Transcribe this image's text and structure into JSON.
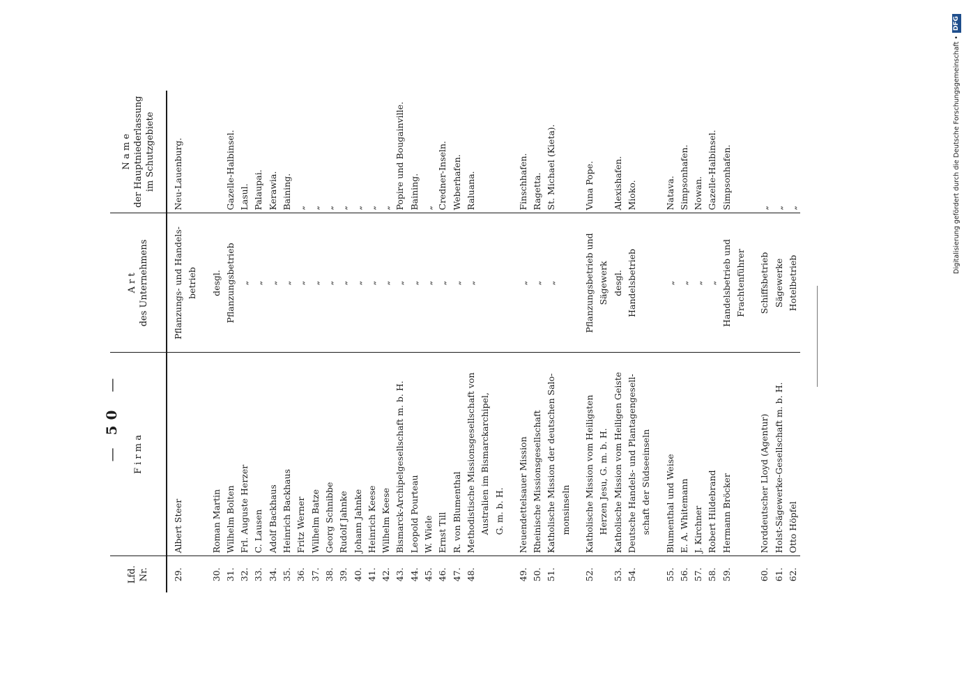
{
  "page_number": "50",
  "dash": "—",
  "table": {
    "headers": {
      "nr_line1": "Lfd.",
      "nr_line2": "Nr.",
      "firma": "F i r m a",
      "art_line1": "A r t",
      "art_line2": "des Unternehmens",
      "ort_line1": "N a m e",
      "ort_line2": "der Hauptniederlassung",
      "ort_line3": "im Schutzgebiete"
    },
    "rows": [
      {
        "nr": "29.",
        "firma": "Albert Steer",
        "art": "Pflanzungs- und Handels-",
        "ort": "Neu-Lauenburg."
      },
      {
        "nr": "",
        "firma": "",
        "art": "betrieb",
        "ort": ""
      },
      {
        "nr": "30.",
        "firma": "Roman Martin",
        "art": "desgl.",
        "ort": ""
      },
      {
        "nr": "31.",
        "firma": "Wilhelm Bolten",
        "art": "Pflanzungsbetrieb",
        "ort": "Gazelle-Halbinsel."
      },
      {
        "nr": "32.",
        "firma": "Frl. Auguste Herzer",
        "art": "„",
        "ort": "Lasul."
      },
      {
        "nr": "33.",
        "firma": "C. Lausen",
        "art": "„",
        "ort": "Palaupai."
      },
      {
        "nr": "34.",
        "firma": "Adolf Backhaus",
        "art": "„",
        "ort": "Kerawia."
      },
      {
        "nr": "35.",
        "firma": "Heinrich Backhaus",
        "art": "„",
        "ort": "Baining."
      },
      {
        "nr": "36.",
        "firma": "Fritz Werner",
        "art": "„",
        "ort": "„"
      },
      {
        "nr": "37.",
        "firma": "Wilhelm Batze",
        "art": "„",
        "ort": "„"
      },
      {
        "nr": "38.",
        "firma": "Georg Schnibbe",
        "art": "„",
        "ort": "„"
      },
      {
        "nr": "39.",
        "firma": "Rudolf Jahnke",
        "art": "„",
        "ort": "„"
      },
      {
        "nr": "40.",
        "firma": "Johann Jahnke",
        "art": "„",
        "ort": "„"
      },
      {
        "nr": "41.",
        "firma": "Heinrich Keese",
        "art": "„",
        "ort": "„"
      },
      {
        "nr": "42.",
        "firma": "Wilhelm Keese",
        "art": "„",
        "ort": "„"
      },
      {
        "nr": "43.",
        "firma": "Bismarck-Archipelgesellschaft m. b. H.",
        "art": "„",
        "ort": "Popire und Bougainville."
      },
      {
        "nr": "44.",
        "firma": "Leopold Pourteau",
        "art": "„",
        "ort": "Baining."
      },
      {
        "nr": "45.",
        "firma": "W. Wiele",
        "art": "„",
        "ort": "„"
      },
      {
        "nr": "46.",
        "firma": "Ernst Till",
        "art": "„",
        "ort": "Credner-Inseln."
      },
      {
        "nr": "47.",
        "firma": "R. von Blumenthal",
        "art": "„",
        "ort": "Weberhafen."
      },
      {
        "nr": "48.",
        "firma": "Methodistische Missionsgesellschaft von",
        "art": "„",
        "ort": "Raluana."
      },
      {
        "nr": "",
        "firma": "Australien im Bismarckarchipel,",
        "art": "",
        "ort": ""
      },
      {
        "nr": "",
        "firma": "G. m. b. H.",
        "art": "",
        "ort": ""
      },
      {
        "nr": "49.",
        "firma": "Neuendettelsauer Mission",
        "art": "„",
        "ort": "Finschhafen."
      },
      {
        "nr": "50.",
        "firma": "Rheinische Missionsgesellschaft",
        "art": "„",
        "ort": "Ragetta."
      },
      {
        "nr": "51.",
        "firma": "Katholische Mission der deutschen Salo-",
        "art": "„",
        "ort": "St. Michael (Kieta)."
      },
      {
        "nr": "",
        "firma": "monsinseln",
        "art": "",
        "ort": ""
      },
      {
        "nr": "52.",
        "firma": "Katholische Mission vom Heiligsten",
        "art": "Pflanzungsbetrieb und",
        "ort": "Vuna Pope."
      },
      {
        "nr": "",
        "firma": "Herzen Jesu, G. m. b. H.",
        "art": "Sägewerk",
        "ort": ""
      },
      {
        "nr": "53.",
        "firma": "Katholische Mission vom Heiligen Geiste",
        "art": "desgl.",
        "ort": "Alexishafen."
      },
      {
        "nr": "54.",
        "firma": "Deutsche Handels- und Plantagengesell-",
        "art": "Handelsbetrieb",
        "ort": "Mioko."
      },
      {
        "nr": "",
        "firma": "schaft der Südseeinseln",
        "art": "",
        "ort": ""
      },
      {
        "nr": "55.",
        "firma": "Blumenthal und Weise",
        "art": "„",
        "ort": "Natava."
      },
      {
        "nr": "56.",
        "firma": "E. A. Whitemann",
        "art": "„",
        "ort": "Simpsonhafen."
      },
      {
        "nr": "57.",
        "firma": "J. Kirchner",
        "art": "„",
        "ort": "Nowan."
      },
      {
        "nr": "58.",
        "firma": "Robert Hildebrand",
        "art": "„",
        "ort": "Gazelle-Halbinsel."
      },
      {
        "nr": "59.",
        "firma": "Hermann Bröcker",
        "art": "Handelsbetrieb und",
        "ort": "Simpsonhafen."
      },
      {
        "nr": "",
        "firma": "",
        "art": "Frachtenführer",
        "ort": ""
      },
      {
        "nr": "60.",
        "firma": "Norddeutscher Lloyd (Agentur)",
        "art": "Schiffsbetrieb",
        "ort": "„"
      },
      {
        "nr": "61.",
        "firma": "Holst-Sägewerke-Gesellschaft m. b. H.",
        "art": "Sägewerke",
        "ort": "„"
      },
      {
        "nr": "62.",
        "firma": "Otto Höpfel",
        "art": "Hotelbetrieb",
        "ort": "„"
      }
    ]
  },
  "side_credit": {
    "text": "Digitalisierung gefördert durch die Deutsche Forschungsgemeinschaft •",
    "logo": "DFG"
  }
}
